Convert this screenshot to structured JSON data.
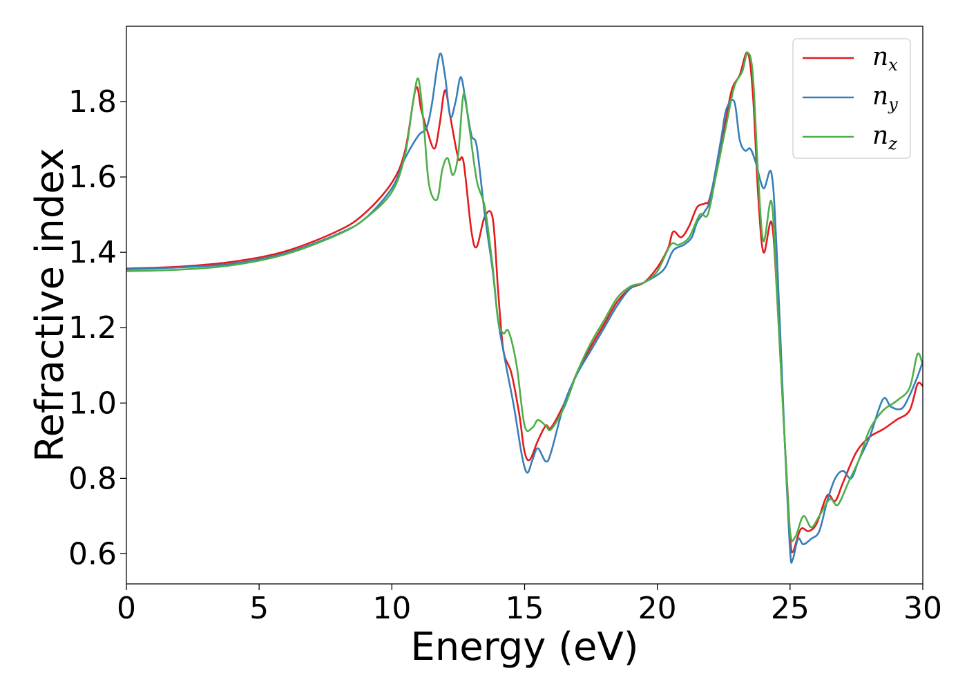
{
  "chart_data": {
    "type": "line",
    "title": "",
    "xlabel": "Energy (eV)",
    "ylabel": "Refractive index",
    "xlim": [
      0,
      30
    ],
    "ylim": [
      0.52,
      2.0
    ],
    "xticks": [
      0,
      5,
      10,
      15,
      20,
      25,
      30
    ],
    "yticks": [
      0.6,
      0.8,
      1.0,
      1.2,
      1.4,
      1.6,
      1.8
    ],
    "xtick_labels": [
      "0",
      "5",
      "10",
      "15",
      "20",
      "25",
      "30"
    ],
    "ytick_labels": [
      "0.6",
      "0.8",
      "1.0",
      "1.2",
      "1.4",
      "1.6",
      "1.8"
    ],
    "grid": false,
    "legend_position": "top-right",
    "series": [
      {
        "name": "n",
        "subscript": "x",
        "color": "#e41a1c",
        "points": [
          [
            0,
            1.357
          ],
          [
            2,
            1.362
          ],
          [
            4,
            1.375
          ],
          [
            6,
            1.403
          ],
          [
            8,
            1.458
          ],
          [
            9,
            1.505
          ],
          [
            10,
            1.585
          ],
          [
            10.5,
            1.67
          ],
          [
            10.9,
            1.835
          ],
          [
            11.1,
            1.78
          ],
          [
            11.3,
            1.73
          ],
          [
            11.6,
            1.675
          ],
          [
            11.8,
            1.74
          ],
          [
            12.0,
            1.83
          ],
          [
            12.2,
            1.76
          ],
          [
            12.5,
            1.65
          ],
          [
            12.7,
            1.64
          ],
          [
            13.0,
            1.455
          ],
          [
            13.2,
            1.415
          ],
          [
            13.5,
            1.495
          ],
          [
            13.8,
            1.49
          ],
          [
            14.0,
            1.3
          ],
          [
            14.2,
            1.14
          ],
          [
            14.5,
            1.08
          ],
          [
            14.8,
            0.97
          ],
          [
            15.0,
            0.87
          ],
          [
            15.2,
            0.85
          ],
          [
            15.5,
            0.9
          ],
          [
            15.8,
            0.94
          ],
          [
            16.0,
            0.935
          ],
          [
            16.5,
            1.0
          ],
          [
            17.0,
            1.085
          ],
          [
            17.5,
            1.15
          ],
          [
            18.0,
            1.21
          ],
          [
            18.5,
            1.27
          ],
          [
            19.0,
            1.305
          ],
          [
            19.5,
            1.32
          ],
          [
            20.0,
            1.36
          ],
          [
            20.4,
            1.41
          ],
          [
            20.6,
            1.455
          ],
          [
            20.9,
            1.44
          ],
          [
            21.2,
            1.47
          ],
          [
            21.5,
            1.52
          ],
          [
            21.8,
            1.53
          ],
          [
            22.0,
            1.55
          ],
          [
            22.5,
            1.72
          ],
          [
            22.8,
            1.83
          ],
          [
            23.1,
            1.87
          ],
          [
            23.4,
            1.93
          ],
          [
            23.6,
            1.82
          ],
          [
            23.8,
            1.55
          ],
          [
            24.0,
            1.4
          ],
          [
            24.3,
            1.48
          ],
          [
            24.5,
            1.3
          ],
          [
            24.8,
            0.9
          ],
          [
            25.0,
            0.65
          ],
          [
            25.1,
            0.605
          ],
          [
            25.4,
            0.665
          ],
          [
            25.7,
            0.66
          ],
          [
            26.0,
            0.68
          ],
          [
            26.4,
            0.755
          ],
          [
            26.7,
            0.74
          ],
          [
            27.0,
            0.79
          ],
          [
            27.5,
            0.87
          ],
          [
            28.0,
            0.91
          ],
          [
            28.5,
            0.93
          ],
          [
            29.0,
            0.955
          ],
          [
            29.5,
            0.98
          ],
          [
            29.8,
            1.05
          ],
          [
            30.0,
            1.045
          ]
        ]
      },
      {
        "name": "n",
        "subscript": "y",
        "color": "#377eb8",
        "points": [
          [
            0,
            1.355
          ],
          [
            2,
            1.36
          ],
          [
            4,
            1.37
          ],
          [
            6,
            1.398
          ],
          [
            8,
            1.45
          ],
          [
            9,
            1.49
          ],
          [
            10,
            1.57
          ],
          [
            10.5,
            1.65
          ],
          [
            11.0,
            1.71
          ],
          [
            11.3,
            1.73
          ],
          [
            11.5,
            1.79
          ],
          [
            11.8,
            1.925
          ],
          [
            12.0,
            1.87
          ],
          [
            12.2,
            1.76
          ],
          [
            12.4,
            1.8
          ],
          [
            12.6,
            1.865
          ],
          [
            12.8,
            1.79
          ],
          [
            13.0,
            1.71
          ],
          [
            13.2,
            1.68
          ],
          [
            13.5,
            1.5
          ],
          [
            13.8,
            1.35
          ],
          [
            14.0,
            1.22
          ],
          [
            14.3,
            1.1
          ],
          [
            14.6,
            0.99
          ],
          [
            14.9,
            0.86
          ],
          [
            15.1,
            0.815
          ],
          [
            15.3,
            0.85
          ],
          [
            15.5,
            0.88
          ],
          [
            15.8,
            0.845
          ],
          [
            16.0,
            0.87
          ],
          [
            16.5,
            1.0
          ],
          [
            17.0,
            1.08
          ],
          [
            17.5,
            1.14
          ],
          [
            18.0,
            1.2
          ],
          [
            18.5,
            1.26
          ],
          [
            19.0,
            1.305
          ],
          [
            19.5,
            1.32
          ],
          [
            20.0,
            1.34
          ],
          [
            20.3,
            1.36
          ],
          [
            20.6,
            1.405
          ],
          [
            21.0,
            1.42
          ],
          [
            21.3,
            1.44
          ],
          [
            21.5,
            1.48
          ],
          [
            21.8,
            1.51
          ],
          [
            22.0,
            1.545
          ],
          [
            22.4,
            1.7
          ],
          [
            22.6,
            1.78
          ],
          [
            22.9,
            1.8
          ],
          [
            23.1,
            1.7
          ],
          [
            23.3,
            1.67
          ],
          [
            23.5,
            1.675
          ],
          [
            23.7,
            1.64
          ],
          [
            24.0,
            1.57
          ],
          [
            24.3,
            1.61
          ],
          [
            24.5,
            1.4
          ],
          [
            24.8,
            0.9
          ],
          [
            25.0,
            0.61
          ],
          [
            25.1,
            0.585
          ],
          [
            25.3,
            0.64
          ],
          [
            25.5,
            0.625
          ],
          [
            25.8,
            0.64
          ],
          [
            26.1,
            0.66
          ],
          [
            26.4,
            0.74
          ],
          [
            26.7,
            0.8
          ],
          [
            27.0,
            0.82
          ],
          [
            27.3,
            0.8
          ],
          [
            27.6,
            0.85
          ],
          [
            28.0,
            0.91
          ],
          [
            28.5,
            1.01
          ],
          [
            28.8,
            0.99
          ],
          [
            29.2,
            0.985
          ],
          [
            29.5,
            1.02
          ],
          [
            29.8,
            1.07
          ],
          [
            30.0,
            1.11
          ]
        ]
      },
      {
        "name": "n",
        "subscript": "z",
        "color": "#4daf4a",
        "points": [
          [
            0,
            1.35
          ],
          [
            2,
            1.354
          ],
          [
            4,
            1.366
          ],
          [
            6,
            1.395
          ],
          [
            8,
            1.448
          ],
          [
            9,
            1.49
          ],
          [
            10,
            1.56
          ],
          [
            10.5,
            1.66
          ],
          [
            10.8,
            1.8
          ],
          [
            11.0,
            1.86
          ],
          [
            11.2,
            1.74
          ],
          [
            11.4,
            1.58
          ],
          [
            11.7,
            1.54
          ],
          [
            11.9,
            1.62
          ],
          [
            12.1,
            1.65
          ],
          [
            12.3,
            1.605
          ],
          [
            12.5,
            1.66
          ],
          [
            12.7,
            1.82
          ],
          [
            12.9,
            1.74
          ],
          [
            13.2,
            1.59
          ],
          [
            13.5,
            1.52
          ],
          [
            13.8,
            1.36
          ],
          [
            14.0,
            1.22
          ],
          [
            14.2,
            1.185
          ],
          [
            14.4,
            1.19
          ],
          [
            14.7,
            1.1
          ],
          [
            15.0,
            0.94
          ],
          [
            15.3,
            0.935
          ],
          [
            15.5,
            0.955
          ],
          [
            15.8,
            0.94
          ],
          [
            16.0,
            0.93
          ],
          [
            16.5,
            0.99
          ],
          [
            17.0,
            1.085
          ],
          [
            17.5,
            1.16
          ],
          [
            18.0,
            1.22
          ],
          [
            18.5,
            1.28
          ],
          [
            19.0,
            1.31
          ],
          [
            19.5,
            1.32
          ],
          [
            20.0,
            1.35
          ],
          [
            20.5,
            1.42
          ],
          [
            20.8,
            1.42
          ],
          [
            21.2,
            1.44
          ],
          [
            21.6,
            1.5
          ],
          [
            21.9,
            1.5
          ],
          [
            22.2,
            1.6
          ],
          [
            22.6,
            1.74
          ],
          [
            22.9,
            1.84
          ],
          [
            23.2,
            1.88
          ],
          [
            23.4,
            1.93
          ],
          [
            23.6,
            1.87
          ],
          [
            23.8,
            1.6
          ],
          [
            24.0,
            1.43
          ],
          [
            24.3,
            1.535
          ],
          [
            24.5,
            1.3
          ],
          [
            24.8,
            0.9
          ],
          [
            25.0,
            0.66
          ],
          [
            25.2,
            0.645
          ],
          [
            25.5,
            0.7
          ],
          [
            25.8,
            0.67
          ],
          [
            26.1,
            0.7
          ],
          [
            26.5,
            0.745
          ],
          [
            26.8,
            0.73
          ],
          [
            27.2,
            0.79
          ],
          [
            27.6,
            0.85
          ],
          [
            28.0,
            0.93
          ],
          [
            28.5,
            0.98
          ],
          [
            29.0,
            1.005
          ],
          [
            29.5,
            1.04
          ],
          [
            29.8,
            1.13
          ],
          [
            30.0,
            1.1
          ]
        ]
      }
    ]
  }
}
